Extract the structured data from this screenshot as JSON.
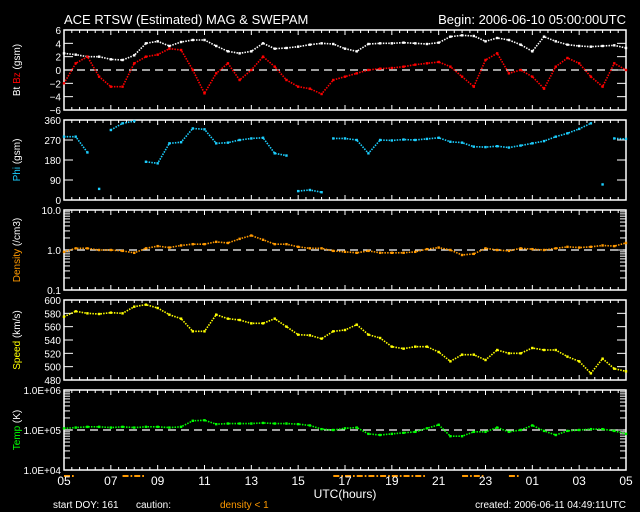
{
  "header": {
    "title": "ACE RTSW (Estimated) MAG & SWEPAM",
    "begin": "Begin: 2006-06-10 05:00:00UTC"
  },
  "footer": {
    "xlabel": "UTC(hours)",
    "start_doy": "start DOY: 161",
    "caution": "caution:",
    "density_note": "density < 1",
    "created": "created: 2006-06-11 04:49:11UTC"
  },
  "colors": {
    "bt": "#ffffff",
    "bz": "#ff0000",
    "phi": "#1ccfff",
    "density": "#ff9900",
    "speed": "#ffff00",
    "temp": "#00ff00",
    "caution": "#ff9900"
  },
  "chart_data": {
    "type": "scatter",
    "x_hours_from_start": [
      0,
      0.5,
      1,
      1.5,
      2,
      2.5,
      3,
      3.5,
      4,
      4.5,
      5,
      5.5,
      6,
      6.5,
      7,
      7.5,
      8,
      8.5,
      9,
      9.5,
      10,
      10.5,
      11,
      11.5,
      12,
      12.5,
      13,
      13.5,
      14,
      14.5,
      15,
      15.5,
      16,
      16.5,
      17,
      17.5,
      18,
      18.5,
      19,
      19.5,
      20,
      20.5,
      21,
      21.5,
      22,
      22.5,
      23,
      23.5,
      24
    ],
    "xticks": [
      "05",
      "07",
      "09",
      "11",
      "13",
      "15",
      "17",
      "19",
      "21",
      "23",
      "01",
      "03",
      "05"
    ],
    "xlim": [
      0,
      24
    ],
    "panels": [
      {
        "id": "mag",
        "ylabel_parts": [
          "Bt",
          "Bz",
          "(gsm)"
        ],
        "scale": "linear",
        "ylim": [
          -6,
          6
        ],
        "yticks": [
          "6",
          "4",
          "2",
          "0",
          "-2",
          "-4",
          "-6"
        ],
        "ytick_values": [
          6,
          4,
          2,
          0,
          -2,
          -4,
          -6
        ],
        "refline": 0,
        "series": [
          {
            "name": "Bt",
            "color_key": "bt",
            "values": [
              2.5,
              2.3,
              2,
              2,
              1.6,
              1.5,
              2.2,
              4,
              4.3,
              3.6,
              4.2,
              4.5,
              4.5,
              3.6,
              2.8,
              2.5,
              2.8,
              4,
              3.2,
              3.3,
              3.5,
              3.8,
              4,
              3.9,
              3.2,
              2.8,
              3.9,
              4,
              4,
              4.1,
              4,
              3.9,
              4.1,
              5,
              5.2,
              5.1,
              4.3,
              4.8,
              4.5,
              3.8,
              2.8,
              5,
              4.3,
              3.8,
              3.6,
              3.5,
              3.6,
              3.7,
              3.3
            ]
          },
          {
            "name": "Bz",
            "color_key": "bz",
            "values": [
              -2,
              1,
              2,
              -1,
              -2.5,
              -2.5,
              1,
              2,
              2.3,
              3.2,
              3,
              0,
              -3.5,
              -0.5,
              1,
              -1.5,
              0,
              2,
              0.5,
              -1.5,
              -2.5,
              -2.8,
              -3.6,
              -1.5,
              -1,
              -0.5,
              0,
              0.2,
              0.3,
              0.5,
              0.8,
              1,
              1.2,
              0.5,
              -1,
              -2.5,
              1.5,
              2.5,
              -0.5,
              0,
              -1,
              -2.8,
              0.5,
              1.8,
              1,
              -1,
              -2.5,
              1,
              0
            ]
          }
        ]
      },
      {
        "id": "phi",
        "ylabel_parts": [
          "Phi",
          "(gsm)"
        ],
        "scale": "linear",
        "ylim": [
          0,
          360
        ],
        "yticks": [
          "360",
          "270",
          "180",
          "90",
          "0"
        ],
        "ytick_values": [
          360,
          270,
          180,
          90,
          0
        ],
        "series": [
          {
            "name": "Phi",
            "color_key": "phi",
            "values": [
              285,
              285,
              214,
              50,
              315,
              345,
              355,
              172,
              165,
              255,
              260,
              322,
              318,
              255,
              258,
              270,
              277,
              280,
              210,
              200,
              40,
              45,
              35,
              277,
              277,
              270,
              210,
              270,
              268,
              272,
              270,
              275,
              280,
              262,
              258,
              240,
              238,
              242,
              236,
              245,
              255,
              265,
              285,
              300,
              320,
              345,
              70,
              277,
              275
            ]
          }
        ]
      },
      {
        "id": "density",
        "ylabel_parts": [
          "Density",
          "(/cm3)"
        ],
        "scale": "log",
        "ylim": [
          0.1,
          10
        ],
        "yticks": [
          "10.0",
          "1.0",
          "0.1"
        ],
        "ytick_values": [
          10,
          1,
          0.1
        ],
        "refline": 1,
        "series": [
          {
            "name": "Density",
            "color_key": "density",
            "values": [
              0.9,
              1.1,
              1.1,
              1.0,
              1.0,
              0.95,
              0.85,
              1.1,
              1.25,
              1.15,
              1.3,
              1.4,
              1.4,
              1.6,
              1.5,
              1.9,
              2.3,
              1.8,
              1.4,
              1.4,
              1.2,
              1.1,
              1.1,
              0.95,
              0.9,
              0.85,
              0.95,
              0.85,
              0.85,
              0.85,
              0.9,
              1.05,
              1.15,
              1.0,
              0.75,
              0.8,
              1.1,
              1.0,
              0.95,
              1.1,
              1.05,
              1.0,
              1.1,
              1.2,
              1.15,
              1.2,
              1.3,
              1.25,
              1.5
            ]
          }
        ]
      },
      {
        "id": "speed",
        "ylabel_parts": [
          "Speed",
          "(km/s)"
        ],
        "scale": "linear",
        "ylim": [
          480,
          600
        ],
        "yticks": [
          "600",
          "580",
          "560",
          "540",
          "520",
          "500",
          "480"
        ],
        "ytick_values": [
          600,
          580,
          560,
          540,
          520,
          500,
          480
        ],
        "series": [
          {
            "name": "Speed",
            "color_key": "speed",
            "values": [
              575,
              583,
              580,
              579,
              581,
              580,
              590,
              593,
              588,
              578,
              572,
              553,
              553,
              578,
              572,
              570,
              565,
              565,
              572,
              560,
              548,
              547,
              542,
              553,
              555,
              563,
              548,
              543,
              530,
              527,
              530,
              530,
              522,
              508,
              518,
              518,
              510,
              525,
              520,
              520,
              528,
              525,
              525,
              515,
              508,
              490,
              512,
              497,
              493
            ]
          }
        ]
      },
      {
        "id": "temp",
        "ylabel_parts": [
          "Temp",
          "(K)"
        ],
        "scale": "log",
        "ylim": [
          10000,
          1000000
        ],
        "yticks": [
          "1.0E+06",
          "1.0E+05",
          "1.0E+04"
        ],
        "ytick_values": [
          1000000,
          100000,
          10000
        ],
        "refline": 100000,
        "series": [
          {
            "name": "Temp",
            "color_key": "temp",
            "values": [
              110000,
              115000,
              120000,
              120000,
              115000,
              120000,
              115000,
              120000,
              120000,
              115000,
              120000,
              170000,
              175000,
              140000,
              145000,
              145000,
              145000,
              150000,
              145000,
              145000,
              140000,
              130000,
              105000,
              100000,
              110000,
              115000,
              80000,
              75000,
              80000,
              85000,
              90000,
              110000,
              135000,
              70000,
              70000,
              90000,
              90000,
              115000,
              90000,
              100000,
              130000,
              95000,
              75000,
              95000,
              100000,
              105000,
              105000,
              95000,
              80000
            ]
          }
        ]
      }
    ]
  }
}
